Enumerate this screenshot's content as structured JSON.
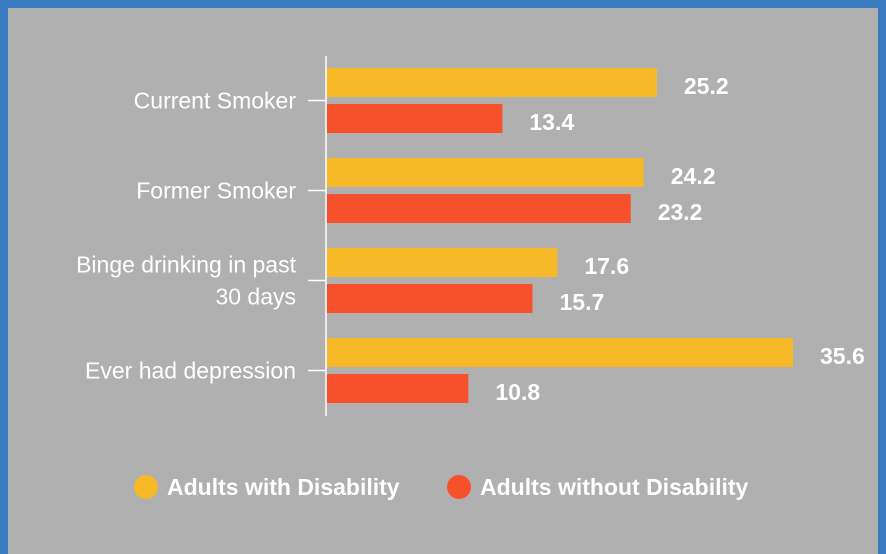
{
  "chart_data": {
    "type": "bar",
    "orientation": "horizontal",
    "categories": [
      [
        "Current Smoker"
      ],
      [
        "Former Smoker"
      ],
      [
        "Binge drinking in past",
        "30 days"
      ],
      [
        "Ever had depression"
      ]
    ],
    "series": [
      {
        "name": "Adults with Disability",
        "color": "#f7b928",
        "values": [
          25.2,
          24.2,
          17.6,
          35.6
        ],
        "labels": [
          "25.2",
          "24.2",
          "17.6",
          "35.6"
        ]
      },
      {
        "name": "Adults without Disability",
        "color": "#f7512b",
        "values": [
          13.4,
          23.2,
          15.7,
          10.8
        ],
        "labels": [
          "13.4",
          "23.2",
          "15.7",
          "10.8"
        ]
      }
    ],
    "xlim": [
      0,
      36
    ],
    "grid": false,
    "legend_position": "bottom"
  }
}
